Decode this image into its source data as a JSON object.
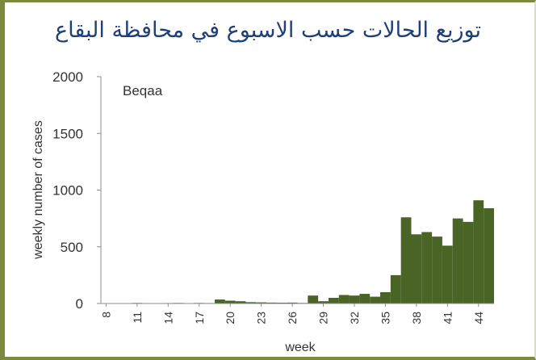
{
  "chart_data": {
    "type": "bar",
    "title": "توزيع الحالات حسب الاسبوع في محافظة البقاع",
    "annotation": "Beqaa",
    "xlabel": "week",
    "ylabel": "weekly number of cases",
    "ylim": [
      0,
      2000
    ],
    "yticks": [
      "0",
      "500",
      "1000",
      "1500",
      "2000"
    ],
    "xticks": [
      "8",
      "11",
      "14",
      "17",
      "20",
      "23",
      "26",
      "29",
      "32",
      "35",
      "38",
      "41",
      "44"
    ],
    "grid": false,
    "bar_color": "#4a6426",
    "categories": [
      8,
      9,
      10,
      11,
      12,
      13,
      14,
      15,
      16,
      17,
      18,
      19,
      20,
      21,
      22,
      23,
      24,
      25,
      26,
      27,
      28,
      29,
      30,
      31,
      32,
      33,
      34,
      35,
      36,
      37,
      38,
      39,
      40,
      41,
      42,
      43,
      44,
      45
    ],
    "values": [
      0,
      0,
      0,
      5,
      3,
      0,
      4,
      5,
      0,
      5,
      4,
      35,
      25,
      20,
      12,
      10,
      8,
      7,
      8,
      5,
      70,
      20,
      50,
      75,
      70,
      85,
      60,
      100,
      250,
      760,
      610,
      630,
      590,
      510,
      750,
      720,
      910,
      840
    ]
  }
}
